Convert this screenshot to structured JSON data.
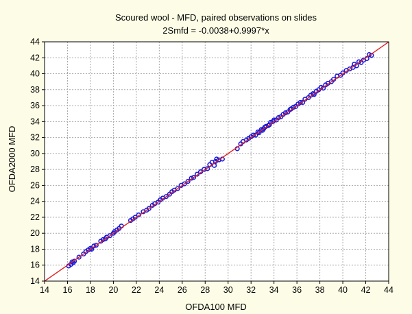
{
  "chart_data": {
    "type": "scatter",
    "title": "Scoured wool - MFD, paired observations on slides",
    "subtitle": "2Smfd = -0.0038+0.9997*x",
    "xlabel": "OFDA100 MFD",
    "ylabel": "OFDA2000 MFD",
    "xlim": [
      14,
      44
    ],
    "ylim": [
      14,
      44
    ],
    "xticks": [
      "14",
      "16",
      "18",
      "20",
      "22",
      "24",
      "26",
      "28",
      "30",
      "32",
      "34",
      "36",
      "38",
      "40",
      "42",
      "44"
    ],
    "yticks": [
      "14",
      "16",
      "18",
      "20",
      "22",
      "24",
      "26",
      "28",
      "30",
      "32",
      "34",
      "36",
      "38",
      "40",
      "42",
      "44"
    ],
    "grid": true,
    "fit_line": {
      "intercept": -0.0038,
      "slope": 0.9997,
      "color": "#e0201e"
    },
    "colors": {
      "points": "#1a1adc",
      "fit": "#e0201e",
      "plot_bg": "#ffffff",
      "page_bg": "#fdfde7"
    },
    "series": [
      {
        "x": [
          16.1,
          16.3,
          16.4,
          16.6,
          16.5,
          17.0,
          17.4,
          17.6,
          17.8,
          18.0,
          18.1,
          18.3,
          18.5,
          18.9,
          19.1,
          19.3,
          19.4,
          19.7,
          20.0,
          20.1,
          20.3,
          20.5,
          20.7,
          21.5,
          21.7,
          21.9,
          22.2,
          22.6,
          22.9,
          23.1,
          23.4,
          23.6,
          23.9,
          24.1,
          24.3,
          24.6,
          24.9,
          25.1,
          25.3,
          25.6,
          25.9,
          26.2,
          26.5,
          26.8,
          27.0,
          27.3,
          27.6,
          27.9,
          28.2,
          28.4,
          28.6,
          28.8,
          28.9,
          29.0,
          29.2,
          29.5,
          30.8,
          31.1,
          31.3,
          31.6,
          31.8,
          32.0,
          32.2,
          32.4,
          32.6,
          32.7,
          32.9,
          33.0,
          33.1,
          33.2,
          33.3,
          33.5,
          33.6,
          33.7,
          33.9,
          34.0,
          34.2,
          34.4,
          34.6,
          34.8,
          35.0,
          35.2,
          35.4,
          35.5,
          35.7,
          35.9,
          36.1,
          36.3,
          36.5,
          36.7,
          37.0,
          37.2,
          37.4,
          37.5,
          37.7,
          37.9,
          38.1,
          38.3,
          38.5,
          38.7,
          39.0,
          39.2,
          39.5,
          39.8,
          40.0,
          40.3,
          40.6,
          40.9,
          41.0,
          41.2,
          41.4,
          41.6,
          41.8,
          42.1,
          42.3,
          42.5
        ],
        "y": [
          15.9,
          16.1,
          16.4,
          16.5,
          16.3,
          17.0,
          17.4,
          17.7,
          17.9,
          18.1,
          18.0,
          18.4,
          18.5,
          19.0,
          19.2,
          19.3,
          19.5,
          19.7,
          20.0,
          20.2,
          20.4,
          20.6,
          20.9,
          21.6,
          21.8,
          22.0,
          22.3,
          22.7,
          22.9,
          23.1,
          23.5,
          23.7,
          23.9,
          24.2,
          24.4,
          24.6,
          24.9,
          25.2,
          25.4,
          25.6,
          26.0,
          26.2,
          26.5,
          26.9,
          27.0,
          27.4,
          27.7,
          28.0,
          28.1,
          28.6,
          28.9,
          28.5,
          29.0,
          29.3,
          29.2,
          29.3,
          30.6,
          31.2,
          31.5,
          31.7,
          31.9,
          32.1,
          32.3,
          32.3,
          32.7,
          32.6,
          33.0,
          32.9,
          33.1,
          33.3,
          33.4,
          33.5,
          33.6,
          33.9,
          34.0,
          34.2,
          34.2,
          34.5,
          34.6,
          34.9,
          35.1,
          35.2,
          35.5,
          35.6,
          35.8,
          35.9,
          36.2,
          36.4,
          36.4,
          36.8,
          37.0,
          37.3,
          37.5,
          37.4,
          37.8,
          38.0,
          38.3,
          38.2,
          38.6,
          38.8,
          39.0,
          39.3,
          39.7,
          39.8,
          40.1,
          40.4,
          40.6,
          40.8,
          41.2,
          41.0,
          41.5,
          41.4,
          41.7,
          41.9,
          42.4,
          42.3
        ]
      }
    ]
  }
}
